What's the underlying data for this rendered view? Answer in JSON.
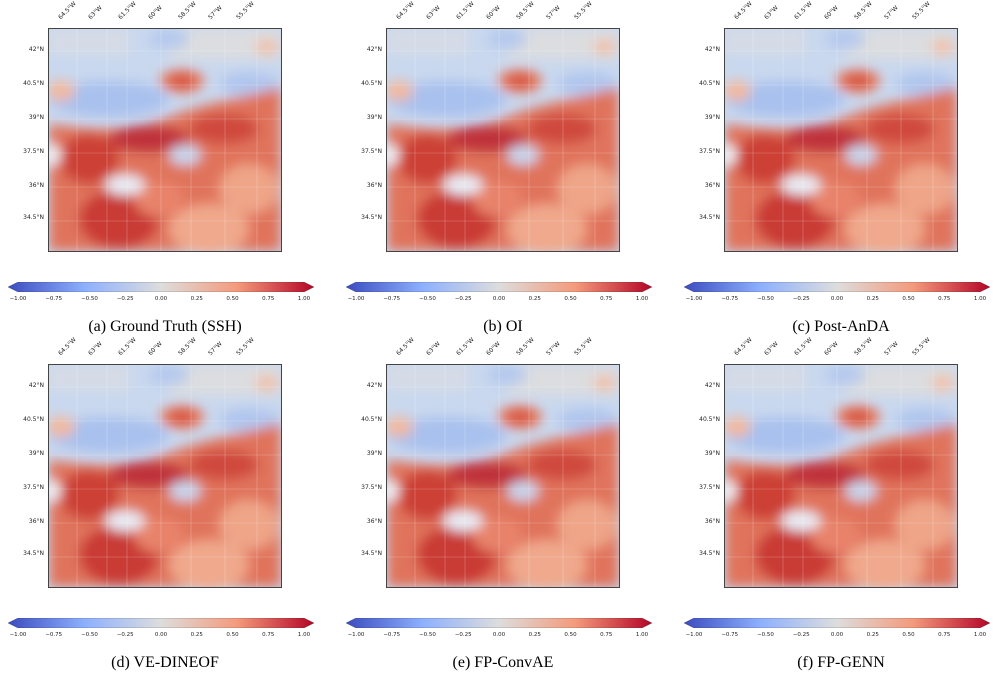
{
  "figure": {
    "lon_ticks": [
      "64.5°W",
      "63°W",
      "61.5°W",
      "60°W",
      "58.5°W",
      "57°W",
      "55.5°W"
    ],
    "lat_ticks": [
      "42°N",
      "40.5°N",
      "39°N",
      "37.5°N",
      "36°N",
      "34.5°N"
    ],
    "colorbar": {
      "ticks": [
        "−1.00",
        "−0.75",
        "−0.50",
        "−0.25",
        "0.00",
        "0.25",
        "0.50",
        "0.75",
        "1.00"
      ],
      "colormap": [
        "#3b4cc0",
        "#8db0fe",
        "#dddddd",
        "#f49a7b",
        "#b40426"
      ]
    },
    "panels": [
      {
        "caption": "(a) Ground Truth (SSH)"
      },
      {
        "caption": "(b) OI"
      },
      {
        "caption": "(c) Post-AnDA"
      },
      {
        "caption": "(d) VE-DINEOF"
      },
      {
        "caption": "(e) FP-ConvAE"
      },
      {
        "caption": "(f) FP-GENN"
      }
    ]
  }
}
